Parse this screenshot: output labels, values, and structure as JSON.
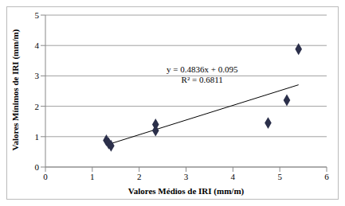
{
  "chart_data": {
    "type": "scatter",
    "x_label": "Valores Médios de IRI (mm/m)",
    "y_label": "Valores Mínimos de IRI (mm/m)",
    "x": [
      1.3,
      1.35,
      1.4,
      2.35,
      2.35,
      4.75,
      5.15,
      5.4
    ],
    "values": [
      0.88,
      0.78,
      0.7,
      1.4,
      1.2,
      1.45,
      2.2,
      3.88
    ],
    "color": "#2b2f4a",
    "marker": "diamond",
    "xlim": [
      0,
      6
    ],
    "xticks": [
      0,
      1,
      2,
      3,
      4,
      5,
      6
    ],
    "ylim": [
      0,
      5
    ],
    "yticks": [
      0,
      1,
      2,
      3,
      4,
      5
    ],
    "grid": true,
    "annotations": [
      "y = 0.4836x + 0.095",
      "R² = 0.6811"
    ],
    "trendline": {
      "x": [
        1.3,
        5.4
      ],
      "values": [
        0.724,
        2.706
      ],
      "color": "#000000"
    }
  }
}
